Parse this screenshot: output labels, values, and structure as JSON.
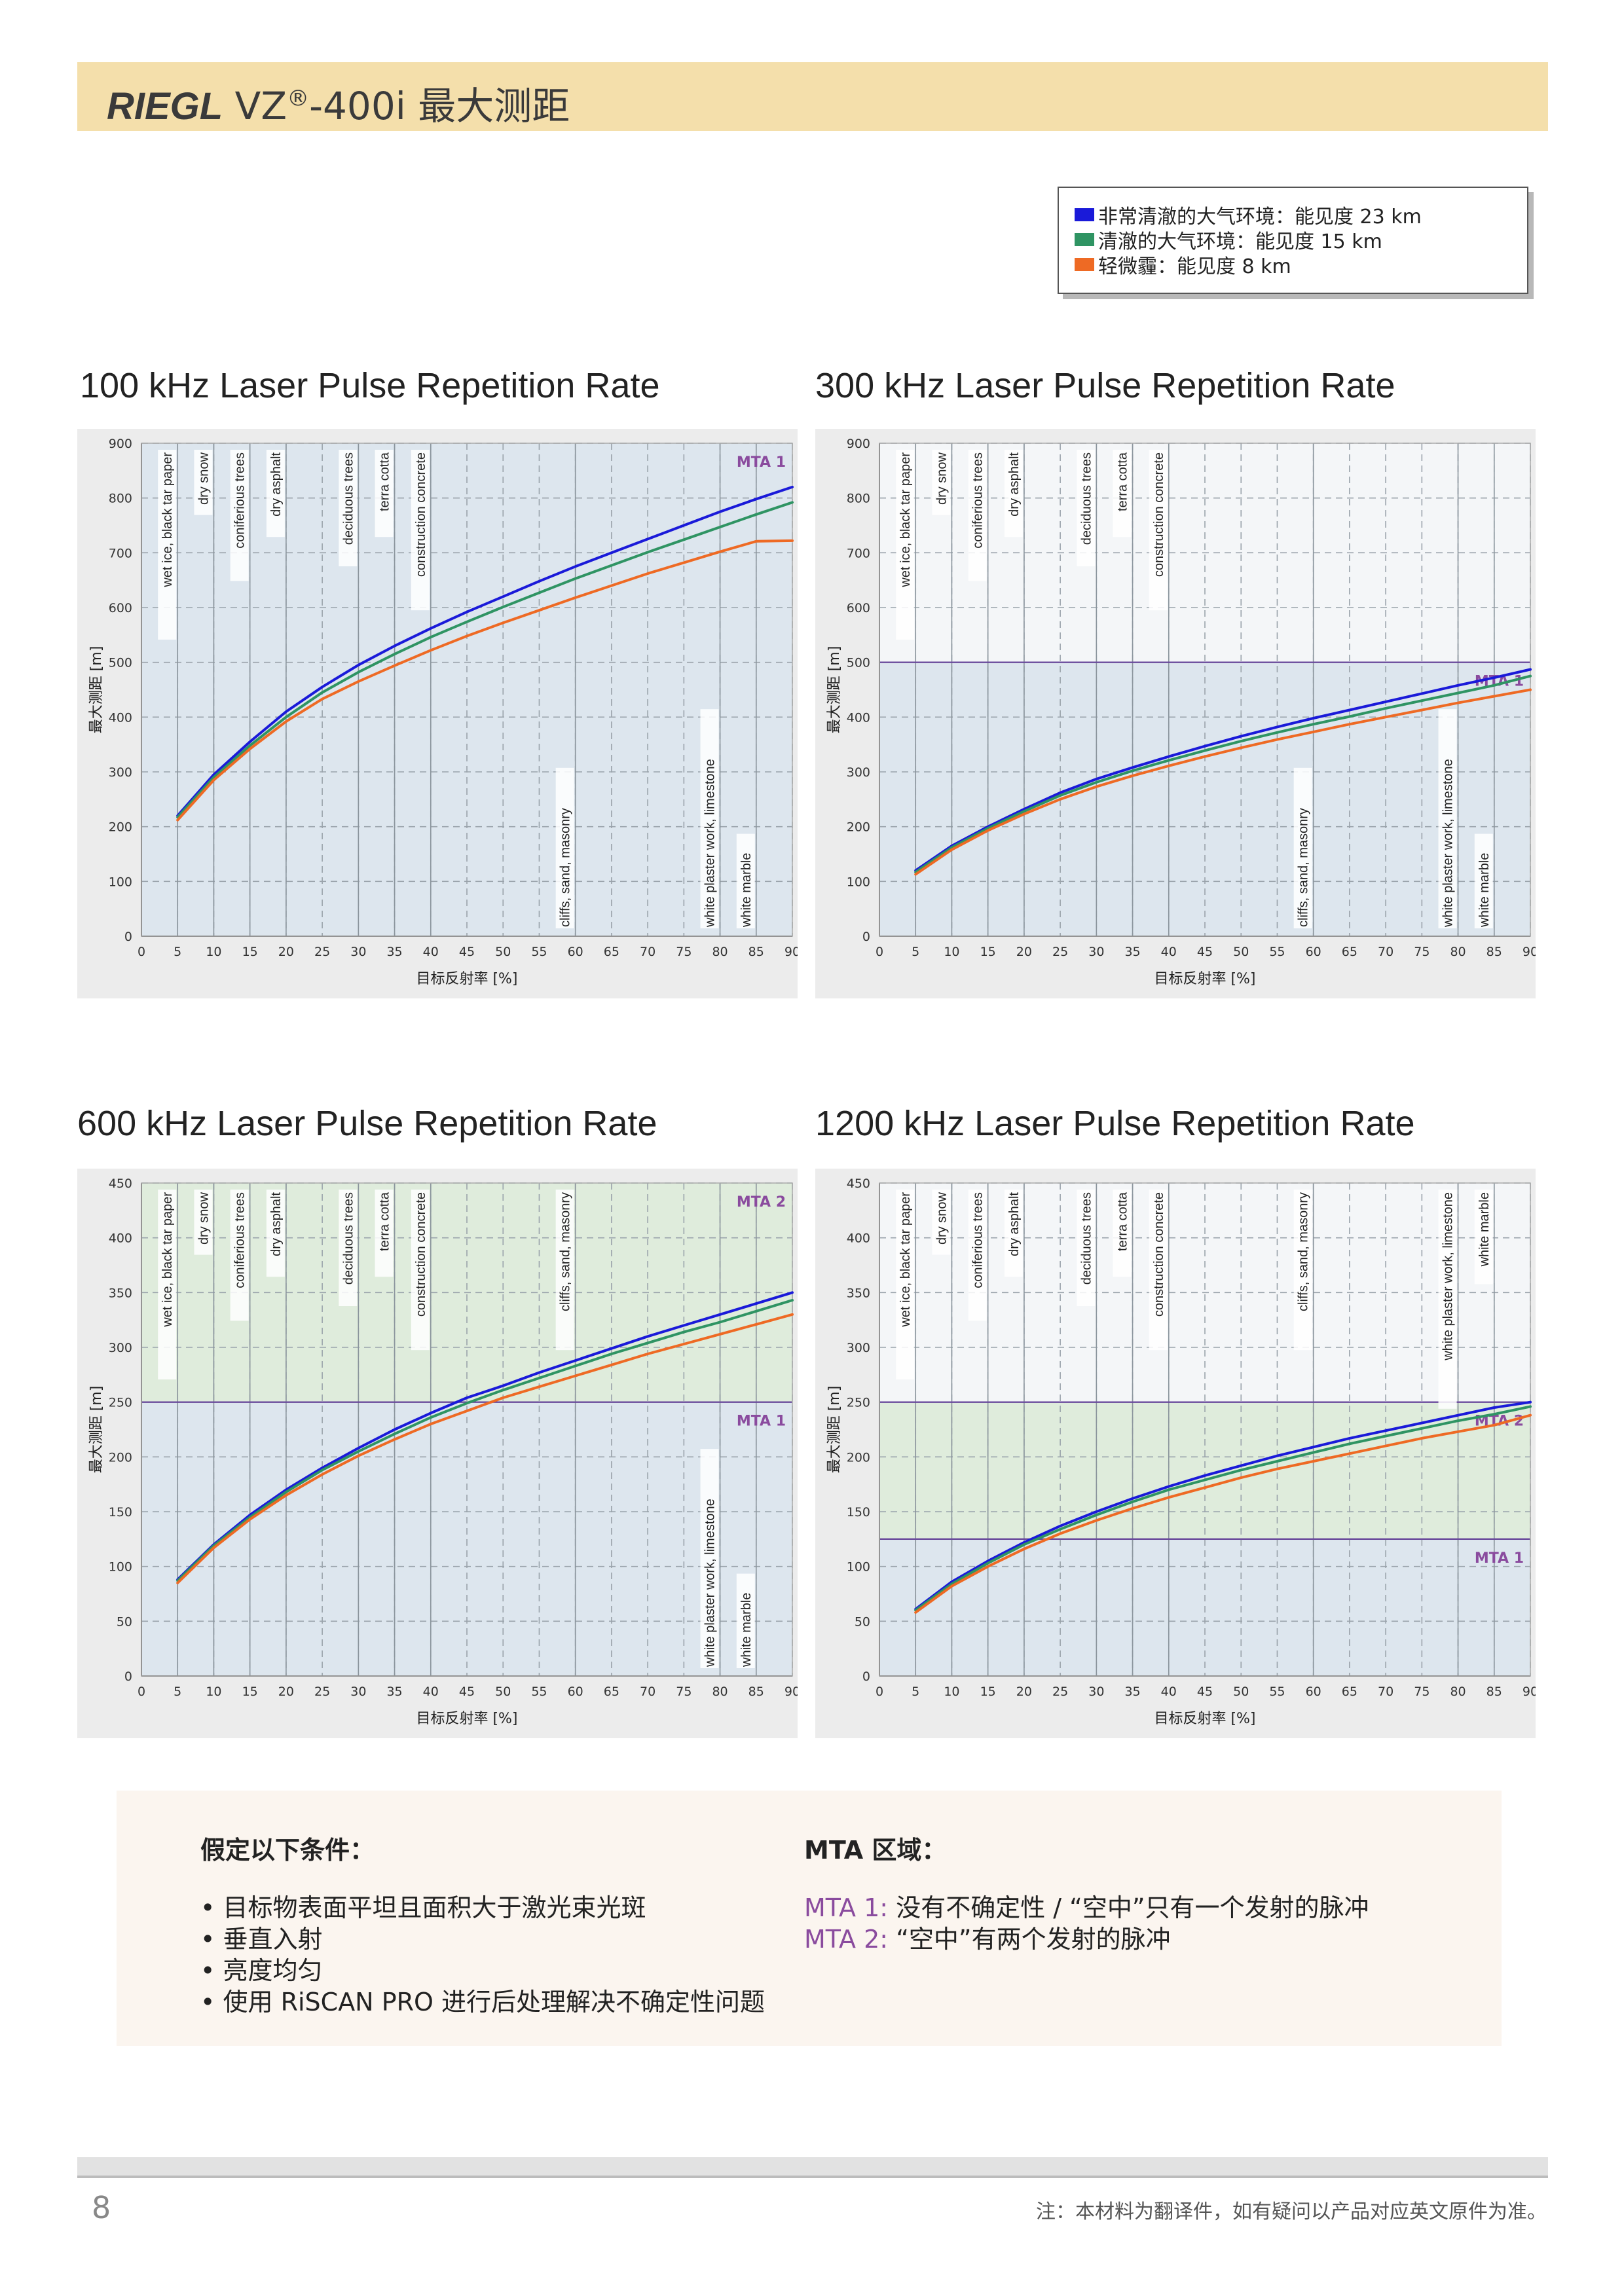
{
  "header": {
    "brand": "RIEGL",
    "model_prefix": "VZ",
    "registered_mark": "®",
    "model_suffix": "-400i",
    "title_cn": "最大测距"
  },
  "legend": [
    {
      "label": "非常清澈的大气环境：能见度 23 km",
      "color": "#1a1ad9"
    },
    {
      "label": "清澈的大气环境：能见度 15 km",
      "color": "#2f9463"
    },
    {
      "label": "轻微霾：能见度 8 km",
      "color": "#ee6a24"
    }
  ],
  "chart_data": [
    {
      "type": "line",
      "title": "100 kHz Laser Pulse Repetition Rate",
      "xlabel": "目标反射率 [%]",
      "ylabel": "最大测距 [m]",
      "xlim": [
        0,
        90
      ],
      "ylim": [
        0,
        900
      ],
      "x_ticks": [
        0,
        5,
        10,
        15,
        20,
        25,
        30,
        35,
        40,
        45,
        50,
        55,
        60,
        65,
        70,
        75,
        80,
        85,
        90
      ],
      "y_ticks": [
        0,
        100,
        200,
        300,
        400,
        500,
        600,
        700,
        800,
        900
      ],
      "grid": true,
      "zones": [
        {
          "label": "MTA 1",
          "from": 0,
          "to": 900,
          "color": "#dde6ee"
        }
      ],
      "mta_lines": [],
      "materials_top": [
        {
          "x": 5,
          "label": "wet  ice, black tar paper"
        },
        {
          "x": 10,
          "label": "dry snow"
        },
        {
          "x": 15,
          "label": "coniferious trees"
        },
        {
          "x": 20,
          "label": "dry asphalt"
        },
        {
          "x": 30,
          "label": "deciduous trees"
        },
        {
          "x": 35,
          "label": "terra cotta"
        },
        {
          "x": 40,
          "label": "construction concrete"
        }
      ],
      "materials_bottom": [
        {
          "x": 60,
          "label": "cliffs, sand, masonry"
        },
        {
          "x": 80,
          "label": "white plaster work, limestone"
        },
        {
          "x": 85,
          "label": "white marble"
        }
      ],
      "x": [
        5,
        10,
        15,
        20,
        25,
        30,
        35,
        40,
        45,
        50,
        55,
        60,
        65,
        70,
        75,
        80,
        85,
        90
      ],
      "series": [
        {
          "name": "非常清澈的大气环境：能见度 23 km",
          "values": [
            220,
            295,
            355,
            410,
            455,
            495,
            530,
            562,
            592,
            620,
            648,
            675,
            700,
            725,
            750,
            775,
            798,
            820
          ]
        },
        {
          "name": "清澈的大气环境：能见度 15 km",
          "values": [
            217,
            290,
            348,
            400,
            445,
            482,
            515,
            546,
            574,
            601,
            627,
            653,
            677,
            701,
            724,
            747,
            770,
            792
          ]
        },
        {
          "name": "轻微霾：能见度 8 km",
          "values": [
            212,
            285,
            342,
            392,
            433,
            465,
            494,
            522,
            548,
            572,
            595,
            618,
            640,
            662,
            682,
            702,
            721,
            722
          ]
        }
      ]
    },
    {
      "type": "line",
      "title": "300 kHz Laser Pulse Repetition Rate",
      "xlabel": "目标反射率 [%]",
      "ylabel": "最大测距 [m]",
      "xlim": [
        0,
        90
      ],
      "ylim": [
        0,
        900
      ],
      "x_ticks": [
        0,
        5,
        10,
        15,
        20,
        25,
        30,
        35,
        40,
        45,
        50,
        55,
        60,
        65,
        70,
        75,
        80,
        85,
        90
      ],
      "y_ticks": [
        0,
        100,
        200,
        300,
        400,
        500,
        600,
        700,
        800,
        900
      ],
      "grid": true,
      "zones": [
        {
          "label": "MTA 1",
          "from": 0,
          "to": 500,
          "color": "#dde6ee"
        }
      ],
      "mta_lines": [
        500
      ],
      "materials_top": [
        {
          "x": 5,
          "label": "wet  ice, black tar paper"
        },
        {
          "x": 10,
          "label": "dry snow"
        },
        {
          "x": 15,
          "label": "coniferious trees"
        },
        {
          "x": 20,
          "label": "dry asphalt"
        },
        {
          "x": 30,
          "label": "deciduous trees"
        },
        {
          "x": 35,
          "label": "terra cotta"
        },
        {
          "x": 40,
          "label": "construction concrete"
        }
      ],
      "materials_bottom": [
        {
          "x": 60,
          "label": "cliffs, sand, masonry"
        },
        {
          "x": 80,
          "label": "white plaster work, limestone"
        },
        {
          "x": 85,
          "label": "white marble"
        }
      ],
      "x": [
        5,
        10,
        15,
        20,
        25,
        30,
        35,
        40,
        45,
        50,
        55,
        60,
        65,
        70,
        75,
        80,
        85,
        90
      ],
      "series": [
        {
          "name": "非常清澈的大气环境：能见度 23 km",
          "values": [
            120,
            165,
            200,
            232,
            262,
            287,
            308,
            328,
            347,
            365,
            382,
            398,
            413,
            428,
            443,
            458,
            472,
            487
          ]
        },
        {
          "name": "清澈的大气环境：能见度 15 km",
          "values": [
            117,
            162,
            197,
            228,
            257,
            281,
            302,
            321,
            339,
            356,
            372,
            387,
            401,
            416,
            430,
            444,
            458,
            475
          ]
        },
        {
          "name": "轻微霾：能见度 8 km",
          "values": [
            113,
            158,
            193,
            223,
            250,
            273,
            293,
            311,
            328,
            344,
            359,
            373,
            387,
            400,
            413,
            426,
            438,
            450
          ]
        }
      ]
    },
    {
      "type": "line",
      "title": "600 kHz Laser Pulse Repetition Rate",
      "xlabel": "目标反射率 [%]",
      "ylabel": "最大测距 [m]",
      "xlim": [
        0,
        90
      ],
      "ylim": [
        0,
        450
      ],
      "x_ticks": [
        0,
        5,
        10,
        15,
        20,
        25,
        30,
        35,
        40,
        45,
        50,
        55,
        60,
        65,
        70,
        75,
        80,
        85,
        90
      ],
      "y_ticks": [
        0,
        50,
        100,
        150,
        200,
        250,
        300,
        350,
        400,
        450
      ],
      "grid": true,
      "zones": [
        {
          "label": "MTA 1",
          "from": 0,
          "to": 250,
          "color": "#dde6ee"
        },
        {
          "label": "MTA 2",
          "from": 250,
          "to": 450,
          "color": "#dfecdc"
        }
      ],
      "mta_lines": [
        250
      ],
      "materials_top": [
        {
          "x": 5,
          "label": "wet  ice, black tar paper"
        },
        {
          "x": 10,
          "label": "dry snow"
        },
        {
          "x": 15,
          "label": "coniferious trees"
        },
        {
          "x": 20,
          "label": "dry asphalt"
        },
        {
          "x": 30,
          "label": "deciduous trees"
        },
        {
          "x": 35,
          "label": "terra cotta"
        },
        {
          "x": 40,
          "label": "construction concrete"
        },
        {
          "x": 60,
          "label": "cliffs, sand, masonry"
        }
      ],
      "materials_bottom": [
        {
          "x": 80,
          "label": "white plaster work, limestone"
        },
        {
          "x": 85,
          "label": "white marble"
        }
      ],
      "x": [
        5,
        10,
        15,
        20,
        25,
        30,
        35,
        40,
        45,
        50,
        55,
        60,
        65,
        70,
        75,
        80,
        85,
        90
      ],
      "series": [
        {
          "name": "非常清澈的大气环境：能见度 23 km",
          "values": [
            88,
            120,
            147,
            170,
            190,
            208,
            225,
            240,
            254,
            265,
            277,
            288,
            299,
            310,
            320,
            330,
            340,
            350
          ]
        },
        {
          "name": "清澈的大气环境：能见度 15 km",
          "values": [
            87,
            119,
            145,
            168,
            188,
            205,
            221,
            236,
            249,
            261,
            272,
            283,
            294,
            304,
            314,
            323,
            333,
            343
          ]
        },
        {
          "name": "轻微霾：能见度 8 km",
          "values": [
            85,
            117,
            143,
            165,
            184,
            201,
            216,
            230,
            242,
            254,
            264,
            274,
            284,
            294,
            303,
            312,
            321,
            330
          ]
        }
      ]
    },
    {
      "type": "line",
      "title": "1200 kHz Laser Pulse Repetition Rate",
      "xlabel": "目标反射率 [%]",
      "ylabel": "最大测距 [m]",
      "xlim": [
        0,
        90
      ],
      "ylim": [
        0,
        450
      ],
      "x_ticks": [
        0,
        5,
        10,
        15,
        20,
        25,
        30,
        35,
        40,
        45,
        50,
        55,
        60,
        65,
        70,
        75,
        80,
        85,
        90
      ],
      "y_ticks": [
        0,
        50,
        100,
        150,
        200,
        250,
        300,
        350,
        400,
        450
      ],
      "grid": true,
      "zones": [
        {
          "label": "MTA 1",
          "from": 0,
          "to": 125,
          "color": "#dde6ee"
        },
        {
          "label": "MTA 2",
          "from": 125,
          "to": 250,
          "color": "#dfecdc"
        }
      ],
      "mta_lines": [
        125,
        250
      ],
      "materials_top": [
        {
          "x": 5,
          "label": "wet  ice, black tar paper"
        },
        {
          "x": 10,
          "label": "dry snow"
        },
        {
          "x": 15,
          "label": "coniferious trees"
        },
        {
          "x": 20,
          "label": "dry asphalt"
        },
        {
          "x": 30,
          "label": "deciduous trees"
        },
        {
          "x": 35,
          "label": "terra cotta"
        },
        {
          "x": 40,
          "label": "construction concrete"
        },
        {
          "x": 60,
          "label": "cliffs, sand, masonry"
        },
        {
          "x": 80,
          "label": "white plaster work, limestone"
        },
        {
          "x": 85,
          "label": "white marble"
        }
      ],
      "materials_bottom": [],
      "x": [
        5,
        10,
        15,
        20,
        25,
        30,
        35,
        40,
        45,
        50,
        55,
        60,
        65,
        70,
        75,
        80,
        85,
        90
      ],
      "series": [
        {
          "name": "非常清澈的大气环境：能见度 23 km",
          "values": [
            61,
            86,
            105,
            122,
            137,
            150,
            162,
            173,
            183,
            192,
            201,
            209,
            217,
            224,
            231,
            238,
            245,
            250
          ]
        },
        {
          "name": "清澈的大气环境：能见度 15 km",
          "values": [
            60,
            84,
            103,
            120,
            134,
            147,
            159,
            170,
            179,
            188,
            196,
            204,
            212,
            219,
            226,
            233,
            239,
            246
          ]
        },
        {
          "name": "轻微霾：能见度 8 km",
          "values": [
            58,
            82,
            100,
            116,
            130,
            142,
            153,
            163,
            172,
            181,
            189,
            196,
            203,
            210,
            217,
            223,
            229,
            238
          ]
        }
      ]
    }
  ],
  "conditions": {
    "heading": "假定以下条件：",
    "items": [
      "• 目标物表面平坦且面积大于激光束光斑",
      "• 垂直入射",
      "• 亮度均匀",
      "• 使用 RiSCAN PRO 进行后处理解决不确定性问题"
    ]
  },
  "mta": {
    "heading": "MTA 区域：",
    "items": [
      {
        "label": "MTA 1:",
        "text": "没有不确定性 / “空中”只有一个发射的脉冲"
      },
      {
        "label": "MTA 2:",
        "text": "“空中”有两个发射的脉冲"
      }
    ]
  },
  "footer": {
    "page_number": "8",
    "note": "注：本材料为翻译件，如有疑问以产品对应英文原件为准。"
  }
}
